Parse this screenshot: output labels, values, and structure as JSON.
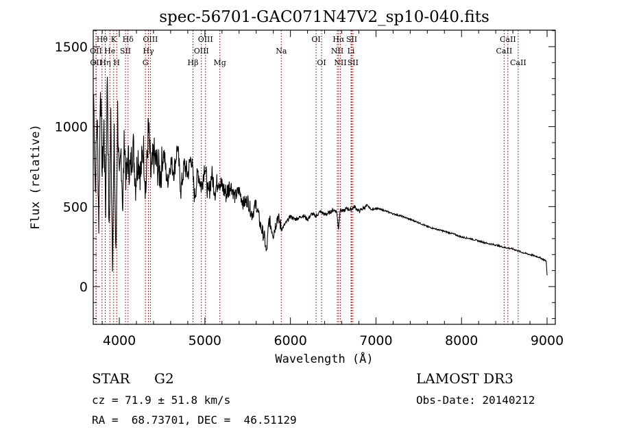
{
  "chart_data": {
    "type": "line",
    "title": "spec-56701-GAC071N47V2_sp10-040.fits",
    "xlabel": "Wavelength (Å)",
    "ylabel": "Flux (relative)",
    "xlim": [
      3695,
      9096
    ],
    "ylim": [
      -236,
      1603
    ],
    "xticks": [
      4000,
      5000,
      6000,
      7000,
      8000,
      9000
    ],
    "xtick_labels": [
      "4000",
      "5000",
      "6000",
      "7000",
      "8000",
      "9000"
    ],
    "xminor_step": 200,
    "yticks": [
      0,
      500,
      1000,
      1500
    ],
    "ytick_labels": [
      "0",
      "500",
      "1000",
      "1500"
    ],
    "yminor_step": 100,
    "grid": false,
    "series": [
      {
        "name": "spectrum",
        "color": "#000000",
        "x": [
          3700,
          3720,
          3740,
          3760,
          3780,
          3800,
          3820,
          3840,
          3860,
          3880,
          3900,
          3920,
          3940,
          3960,
          3980,
          4000,
          4020,
          4040,
          4060,
          4080,
          4100,
          4130,
          4160,
          4190,
          4220,
          4250,
          4280,
          4310,
          4340,
          4370,
          4400,
          4440,
          4480,
          4520,
          4560,
          4600,
          4640,
          4680,
          4720,
          4760,
          4800,
          4840,
          4880,
          4920,
          4960,
          5000,
          5040,
          5080,
          5120,
          5160,
          5200,
          5250,
          5300,
          5350,
          5400,
          5450,
          5500,
          5550,
          5600,
          5650,
          5700,
          5720,
          5750,
          5800,
          5850,
          5900,
          5950,
          6000,
          6050,
          6100,
          6150,
          6200,
          6250,
          6300,
          6350,
          6400,
          6450,
          6500,
          6540,
          6562,
          6580,
          6620,
          6660,
          6700,
          6750,
          6800,
          6850,
          6900,
          6950,
          7000,
          7100,
          7200,
          7300,
          7400,
          7500,
          7600,
          7700,
          7800,
          7900,
          8000,
          8100,
          8200,
          8300,
          8400,
          8500,
          8600,
          8700,
          8800,
          8900,
          8990,
          9000
        ],
        "y": [
          1200,
          600,
          1100,
          400,
          1300,
          700,
          1000,
          500,
          1350,
          300,
          1050,
          200,
          900,
          150,
          1100,
          600,
          850,
          500,
          950,
          650,
          800,
          720,
          900,
          650,
          820,
          700,
          880,
          600,
          1000,
          680,
          820,
          760,
          700,
          840,
          650,
          780,
          720,
          880,
          600,
          760,
          700,
          820,
          560,
          720,
          620,
          770,
          560,
          700,
          600,
          680,
          620,
          580,
          640,
          560,
          600,
          520,
          540,
          450,
          520,
          380,
          300,
          200,
          420,
          330,
          440,
          360,
          400,
          440,
          420,
          430,
          445,
          420,
          455,
          440,
          470,
          450,
          460,
          480,
          470,
          360,
          480,
          470,
          490,
          480,
          500,
          470,
          490,
          505,
          480,
          490,
          475,
          455,
          440,
          420,
          400,
          375,
          360,
          345,
          330,
          310,
          300,
          285,
          270,
          260,
          245,
          235,
          215,
          200,
          185,
          160,
          70
        ]
      }
    ],
    "line_markers": [
      {
        "label": "Hθ",
        "wavelength": 3798,
        "row": 1
      },
      {
        "label": "K",
        "wavelength": 3934,
        "row": 1
      },
      {
        "label": "Hδ",
        "wavelength": 4102,
        "row": 1
      },
      {
        "label": "OIII",
        "wavelength": 4363,
        "row": 1
      },
      {
        "label": "OIII",
        "wavelength": 5007,
        "row": 1
      },
      {
        "label": "OI",
        "wavelength": 6300,
        "row": 1
      },
      {
        "label": "Hα",
        "wavelength": 6563,
        "row": 1
      },
      {
        "label": "SII",
        "wavelength": 6716,
        "row": 1
      },
      {
        "label": "CaII",
        "wavelength": 8542,
        "row": 1
      },
      {
        "label": "OII",
        "wavelength": 3727,
        "row": 2
      },
      {
        "label": "He",
        "wavelength": 3889,
        "row": 2
      },
      {
        "label": "SII",
        "wavelength": 4072,
        "row": 2
      },
      {
        "label": "Hγ",
        "wavelength": 4340,
        "row": 2
      },
      {
        "label": "OIII",
        "wavelength": 4959,
        "row": 2
      },
      {
        "label": "Na",
        "wavelength": 5893,
        "row": 2
      },
      {
        "label": "NII",
        "wavelength": 6548,
        "row": 2
      },
      {
        "label": "Li",
        "wavelength": 6708,
        "row": 2
      },
      {
        "label": "CaII",
        "wavelength": 8498,
        "row": 2
      },
      {
        "label": "OII",
        "wavelength": 3729,
        "row": 3
      },
      {
        "label": "Hη",
        "wavelength": 3835,
        "row": 3
      },
      {
        "label": "H",
        "wavelength": 3969,
        "row": 3
      },
      {
        "label": "G",
        "wavelength": 4305,
        "row": 3
      },
      {
        "label": "Hβ",
        "wavelength": 4861,
        "row": 3
      },
      {
        "label": "Mg",
        "wavelength": 5175,
        "row": 3
      },
      {
        "label": "OI",
        "wavelength": 6364,
        "row": 3
      },
      {
        "label": "NII",
        "wavelength": 6583,
        "row": 3
      },
      {
        "label": "SII",
        "wavelength": 6731,
        "row": 3
      },
      {
        "label": "CaII",
        "wavelength": 8662,
        "row": 3
      }
    ],
    "marker_color": "#a52a2a"
  },
  "info": {
    "object_class": "STAR",
    "subclass": "G2",
    "survey": "LAMOST DR3",
    "redshift_line": "cz = 71.9 ± 51.8 km/s",
    "obs_date_line": "Obs-Date: 20140212",
    "coords_line": "RA =  68.73701, DEC =  46.51129"
  }
}
